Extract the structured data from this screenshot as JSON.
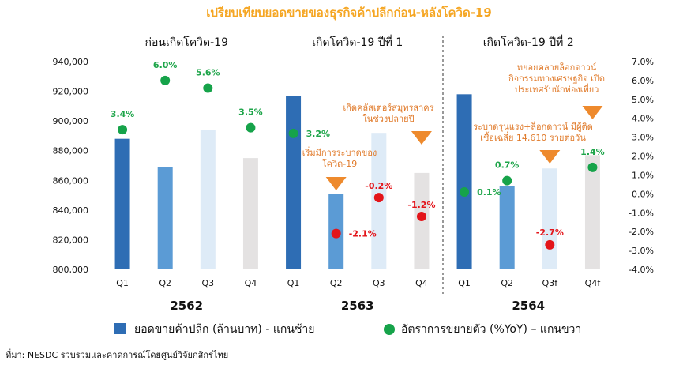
{
  "title": "เปรียบเทียบยอดขายของธุรกิจค้าปลีกก่อน-หลังโควิด-19",
  "source": "ที่มา: NESDC รวบรวมและคาดการณ์โดยศูนย์วิจัยกสิกรไทย",
  "legend": {
    "bars": "ยอดขายค้าปลีก (ล้านบาท) - แกนซ้าย",
    "dots": "อัตราการขยายตัว (%YoY) – แกนขวา"
  },
  "colors": {
    "q1": "#2e6db4",
    "q2": "#5b9bd5",
    "q3": "#deebf7",
    "q4": "#e4e2e2",
    "dot_pos": "#16a34a",
    "dot_neg": "#e3151a",
    "arrow": "#ee8a2d"
  },
  "chart_data": {
    "type": "bar",
    "title": "เปรียบเทียบยอดขายของธุรกิจค้าปลีกก่อน-หลังโควิด-19",
    "periods": [
      {
        "label": "ก่อนเกิดโควิด-19",
        "year": "2562"
      },
      {
        "label": "เกิดโควิด-19 ปีที่ 1",
        "year": "2563"
      },
      {
        "label": "เกิดโควิด-19 ปีที่ 2",
        "year": "2564"
      }
    ],
    "categories": [
      "Q1",
      "Q2",
      "Q3",
      "Q4",
      "Q1",
      "Q2",
      "Q3",
      "Q4",
      "Q1",
      "Q2",
      "Q3f",
      "Q4f"
    ],
    "series": [
      {
        "name": "ยอดขายค้าปลีก (ล้านบาท) - แกนซ้าย",
        "axis": "left",
        "values": [
          888000,
          869000,
          894000,
          875000,
          917000,
          851000,
          892000,
          865000,
          918000,
          856000,
          868000,
          877000
        ]
      },
      {
        "name": "อัตราการขยายตัว (%YoY) – แกนขวา",
        "axis": "right",
        "values": [
          3.4,
          6.0,
          5.6,
          3.5,
          3.2,
          -2.1,
          -0.2,
          -1.2,
          0.1,
          0.7,
          -2.7,
          1.4
        ],
        "labels": [
          "3.4%",
          "6.0%",
          "5.6%",
          "3.5%",
          "3.2%",
          "-2.1%",
          "-0.2%",
          "-1.2%",
          "0.1%",
          "0.7%",
          "-2.7%",
          "1.4%"
        ]
      }
    ],
    "y_left": {
      "min": 800000,
      "max": 940000,
      "ticks": [
        "800,000",
        "820,000",
        "840,000",
        "860,000",
        "880,000",
        "900,000",
        "920,000",
        "940,000"
      ]
    },
    "y_right": {
      "min": -4.0,
      "max": 7.0,
      "ticks": [
        "-4.0%",
        "-3.0%",
        "-2.0%",
        "-1.0%",
        "0.0%",
        "1.0%",
        "2.0%",
        "3.0%",
        "4.0%",
        "5.0%",
        "6.0%",
        "7.0%"
      ]
    },
    "annotations": [
      {
        "index": 5,
        "lines": [
          "เริ่มมีการระบาดของ",
          "โควิด-19"
        ]
      },
      {
        "index": 7,
        "lines": [
          "เกิดคลัสเตอร์สมุทรสาคร",
          "ในช่วงปลายปี"
        ]
      },
      {
        "index": 10,
        "lines": [
          "ระบาดรุนแรง+ล็อกดาวน์ มีผู้ติด",
          "เชื้อเฉลี่ย 14,610 รายต่อวัน"
        ]
      },
      {
        "index": 11,
        "lines": [
          "ทยอยคลายล็อกดาวน์",
          "กิจกรรมทางเศรษฐกิจ เปิด",
          "ประเทศรับนักท่องเที่ยว"
        ]
      }
    ],
    "grid": false,
    "legend_position": "bottom"
  }
}
